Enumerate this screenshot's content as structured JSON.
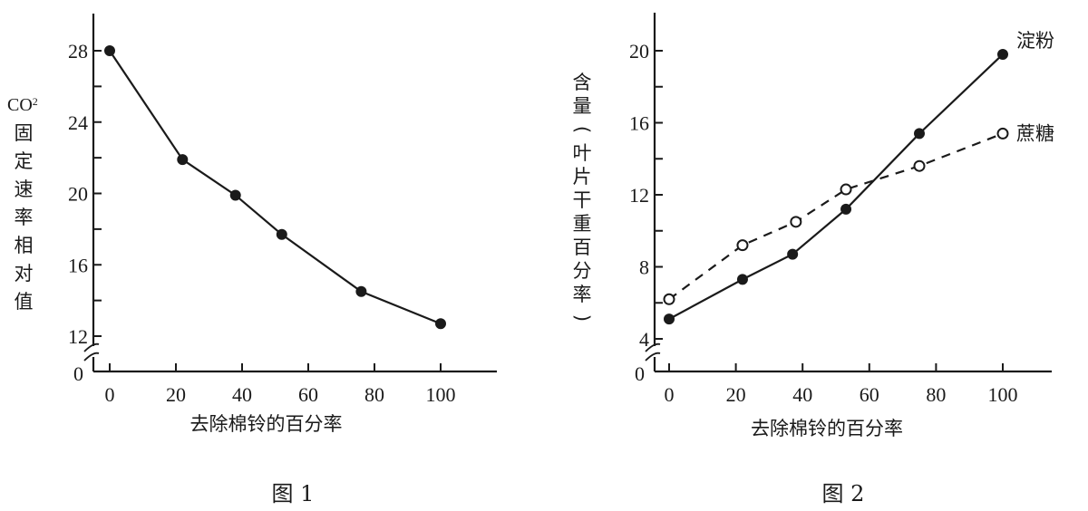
{
  "chart_data": [
    {
      "type": "line",
      "caption": "图 1",
      "title": "",
      "xlabel": "去除棉铃的百分率",
      "ylabel": "CO2固定速率相对值",
      "ylabel_parts": [
        "CO",
        "2",
        "固",
        "定",
        "速",
        "率",
        "相",
        "对",
        "值"
      ],
      "x_ticks": [
        0,
        20,
        40,
        60,
        80,
        100
      ],
      "y_ticks": [
        12,
        16,
        20,
        24,
        28
      ],
      "y_minor_ticks": [
        14,
        18,
        22,
        26
      ],
      "y_axis_break": true,
      "y_origin_label": "0",
      "xlim": [
        0,
        100
      ],
      "ylim": [
        12,
        28
      ],
      "grid": false,
      "series": [
        {
          "name": "CO2固定速率相对值",
          "marker": "filled-circle",
          "line_style": "solid",
          "x": [
            0,
            22,
            38,
            52,
            76,
            100
          ],
          "values": [
            28,
            21.9,
            19.9,
            17.7,
            14.5,
            12.7
          ]
        }
      ]
    },
    {
      "type": "line",
      "caption": "图 2",
      "title": "",
      "xlabel": "去除棉铃的百分率",
      "ylabel": "含量(叶片干重百分率)",
      "ylabel_parts": [
        "含",
        "量",
        "(",
        "叶",
        "片",
        "干",
        "重",
        "百",
        "分",
        "率",
        ")"
      ],
      "x_ticks": [
        0,
        20,
        40,
        60,
        80,
        100
      ],
      "y_ticks": [
        4,
        8,
        12,
        16,
        20
      ],
      "y_minor_ticks": [
        6,
        10,
        14,
        18
      ],
      "y_axis_break": true,
      "y_origin_label": "0",
      "xlim": [
        0,
        100
      ],
      "ylim": [
        4,
        20
      ],
      "grid": false,
      "legend_position": "inline-right",
      "series": [
        {
          "name": "淀粉",
          "marker": "filled-circle",
          "line_style": "solid",
          "x": [
            0,
            22,
            37,
            53,
            75,
            100
          ],
          "values": [
            5.1,
            7.3,
            8.7,
            11.2,
            15.4,
            19.8
          ]
        },
        {
          "name": "蔗糖",
          "marker": "open-circle",
          "line_style": "dashed",
          "x": [
            0,
            22,
            38,
            53,
            75,
            100
          ],
          "values": [
            6.2,
            9.2,
            10.5,
            12.3,
            13.6,
            15.4
          ]
        }
      ]
    }
  ]
}
